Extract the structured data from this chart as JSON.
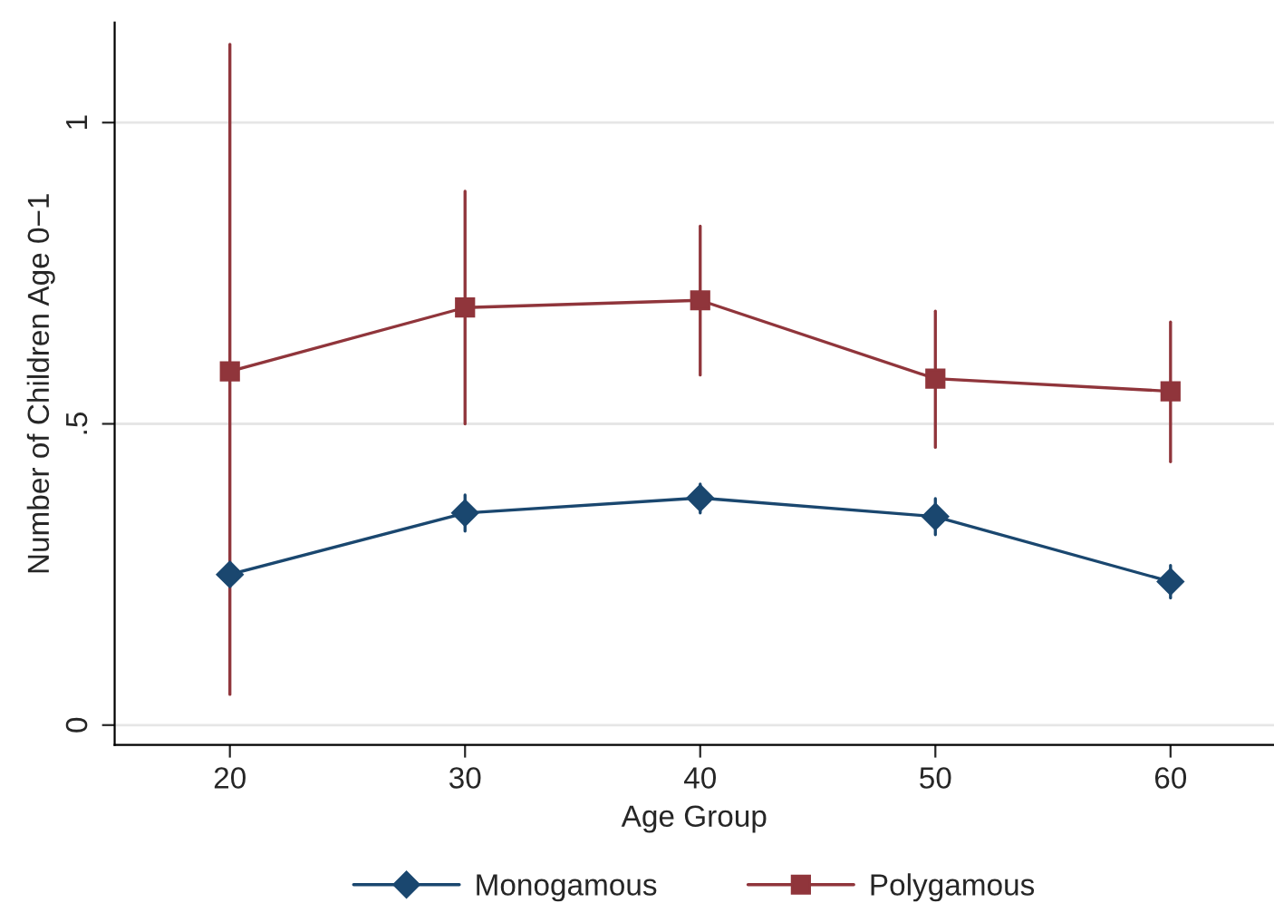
{
  "chart_data": {
    "type": "line",
    "xlabel": "Age Group",
    "ylabel": "Number of Children Age 0−1",
    "x": [
      20,
      30,
      40,
      50,
      60
    ],
    "series": [
      {
        "name": "Monogamous",
        "color": "#1a476f",
        "marker": "diamond",
        "values": [
          0.25,
          0.352,
          0.377,
          0.346,
          0.238
        ],
        "errors": [
          [
            0.23,
            0.27
          ],
          [
            0.322,
            0.382
          ],
          [
            0.352,
            0.4
          ],
          [
            0.316,
            0.376
          ],
          [
            0.211,
            0.265
          ]
        ]
      },
      {
        "name": "Polygamous",
        "color": "#90353b",
        "marker": "square",
        "values": [
          0.587,
          0.693,
          0.705,
          0.575,
          0.554
        ],
        "errors": [
          [
            0.051,
            1.13
          ],
          [
            0.5,
            0.886
          ],
          [
            0.581,
            0.828
          ],
          [
            0.461,
            0.687
          ],
          [
            0.437,
            0.669
          ]
        ]
      }
    ],
    "xlim": [
      15.1,
      64.4
    ],
    "ylim": [
      -0.033,
      1.166
    ],
    "xticks": [
      20,
      30,
      40,
      50,
      60
    ],
    "yticks": [
      0,
      {
        "value": 0.5,
        "label": ".5"
      },
      1
    ],
    "grid": "y",
    "legend": "bottom",
    "line_style": "solid"
  }
}
